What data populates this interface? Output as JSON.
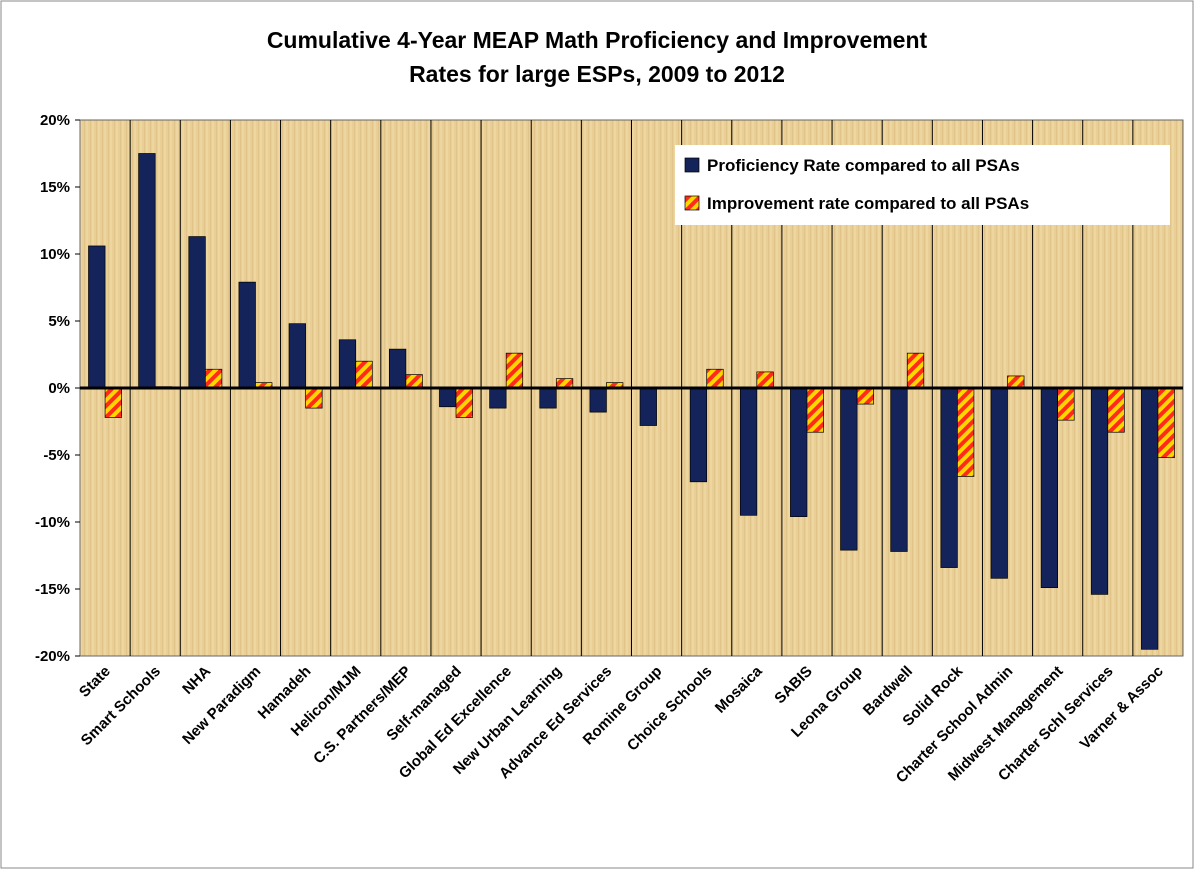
{
  "chart_data": {
    "type": "bar",
    "title": [
      "Cumulative 4-Year MEAP Math  Proficiency and Improvement",
      "Rates for large ESPs, 2009 to 2012"
    ],
    "categories": [
      "State",
      "Smart Schools",
      "NHA",
      "New Paradigm",
      "Hamadeh",
      "Helicon/MJM",
      "C.S. Partners/MEP",
      "Self-managed",
      "Global Ed Excellence",
      "New Urban Learning",
      "Advance Ed Services",
      "Romine Group",
      "Choice Schools",
      "Mosaica",
      "SABIS",
      "Leona Group",
      "Bardwell",
      "Solid Rock",
      "Charter School Admin",
      "Midwest Management",
      "Charter Schl Services",
      "Varner & Assoc"
    ],
    "series": [
      {
        "name": "Proficiency Rate compared to all PSAs",
        "color": "#14245a",
        "values": [
          10.6,
          17.5,
          11.3,
          7.9,
          4.8,
          3.6,
          2.9,
          -1.4,
          -1.5,
          -1.5,
          -1.8,
          -2.8,
          -7.0,
          -9.5,
          -9.6,
          -12.1,
          -12.2,
          -13.4,
          -14.2,
          -14.9,
          -15.4,
          -19.5
        ]
      },
      {
        "name": "Improvement rate compared to all PSAs",
        "color": "#ffd700",
        "values": [
          -2.2,
          0.1,
          1.4,
          0.4,
          -1.5,
          2.0,
          1.0,
          -2.2,
          2.6,
          0.7,
          0.4,
          null,
          1.4,
          1.2,
          -3.3,
          -1.2,
          2.6,
          -6.6,
          0.9,
          -2.4,
          -3.3,
          -5.2
        ]
      }
    ],
    "ylim": [
      -20,
      20
    ],
    "yticks": [
      {
        "value": -20,
        "label": "-20%"
      },
      {
        "value": -15,
        "label": "-15%"
      },
      {
        "value": -10,
        "label": "-10%"
      },
      {
        "value": -5,
        "label": "-5%"
      },
      {
        "value": 0,
        "label": "0%"
      },
      {
        "value": 5,
        "label": "5%"
      },
      {
        "value": 10,
        "label": "10%"
      },
      {
        "value": 15,
        "label": "15%"
      },
      {
        "value": 20,
        "label": "20%"
      }
    ],
    "legend": "top-right"
  }
}
